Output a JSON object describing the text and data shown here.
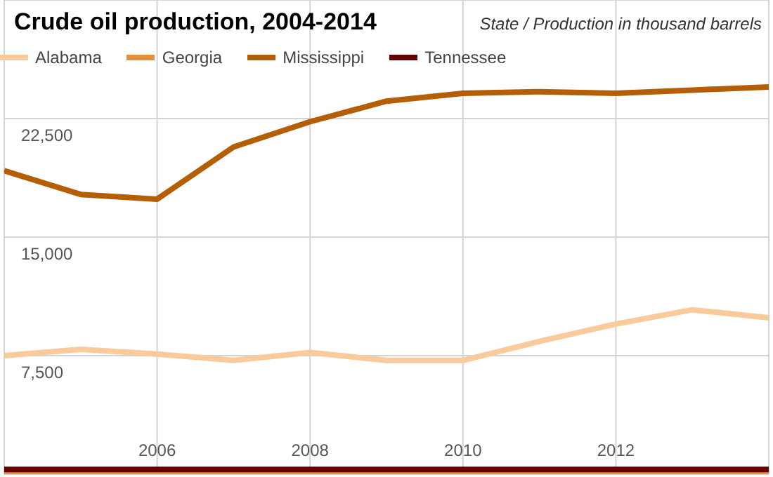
{
  "chart_data": {
    "type": "line",
    "title": "Crude oil production, 2004-2014",
    "subtitle": "State / Production in thousand barrels",
    "x": [
      2004,
      2005,
      2006,
      2007,
      2008,
      2009,
      2010,
      2011,
      2012,
      2013,
      2014
    ],
    "xlim": [
      2004,
      2014
    ],
    "xticks": [
      2006,
      2008,
      2010,
      2012
    ],
    "ylim": [
      0,
      30000
    ],
    "yticks": [
      {
        "value": 7500,
        "label": "7,500"
      },
      {
        "value": 15000,
        "label": "15,000"
      },
      {
        "value": 22500,
        "label": "22,500"
      }
    ],
    "grid": true,
    "legend": "top left",
    "marker": "none",
    "line_style": "solid",
    "series": [
      {
        "name": "Alabama",
        "color": "#f9cb9c",
        "values": [
          7500,
          7900,
          7600,
          7200,
          7700,
          7200,
          7200,
          8400,
          9500,
          10400,
          9900
        ]
      },
      {
        "name": "Georgia",
        "color": "#e69138",
        "values": [
          0,
          0,
          0,
          0,
          0,
          0,
          0,
          0,
          0,
          0,
          0
        ]
      },
      {
        "name": "Mississippi",
        "color": "#b45f06",
        "values": [
          19200,
          17700,
          17400,
          20700,
          22300,
          23600,
          24100,
          24200,
          24100,
          24300,
          24500
        ]
      },
      {
        "name": "Tennessee",
        "color": "#660000",
        "values": [
          300,
          300,
          300,
          300,
          300,
          300,
          300,
          300,
          300,
          300,
          300
        ]
      }
    ]
  }
}
